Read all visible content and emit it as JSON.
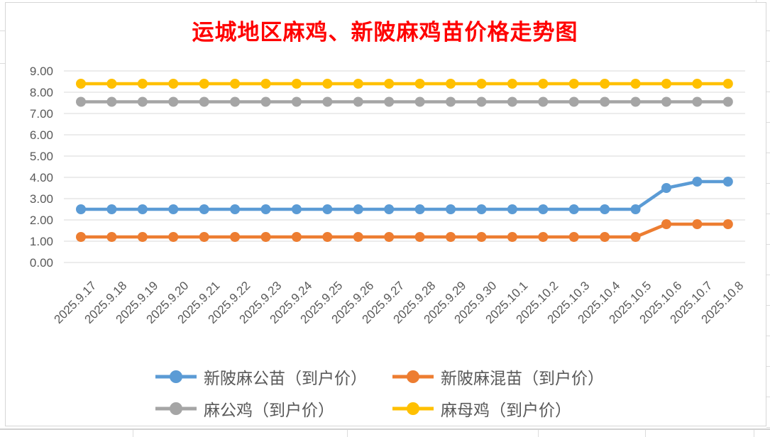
{
  "title": "运城地区麻鸡、新陂麻鸡苗价格走势图",
  "colors": {
    "title": "#FF0000",
    "axis_text": "#595959",
    "gridline": "#D9D9D9",
    "chart_border": "#D6D6D6",
    "sheet_line": "#D2D2D2"
  },
  "chart_data": {
    "type": "line",
    "title": "运城地区麻鸡、新陂麻鸡苗价格走势图",
    "xlabel": "",
    "ylabel": "",
    "ylim": [
      0,
      9
    ],
    "grid": true,
    "legend_position": "bottom",
    "marker": "circle",
    "yticks": [
      "0.00",
      "1.00",
      "2.00",
      "3.00",
      "4.00",
      "5.00",
      "6.00",
      "7.00",
      "8.00",
      "9.00"
    ],
    "categories": [
      "2025.9.17",
      "2025.9.18",
      "2025.9.19",
      "2025.9.20",
      "2025.9.21",
      "2025.9.22",
      "2025.9.23",
      "2025.9.24",
      "2025.9.25",
      "2025.9.26",
      "2025.9.27",
      "2025.9.28",
      "2025.9.29",
      "2025.9.30",
      "2025.10.1",
      "2025.10.2",
      "2025.10.3",
      "2025.10.4",
      "2025.10.5",
      "2025.10.6",
      "2025.10.7",
      "2025.10.8"
    ],
    "series": [
      {
        "name": "新陂麻公苗（到户价）",
        "color": "#5B9BD5",
        "values": [
          2.5,
          2.5,
          2.5,
          2.5,
          2.5,
          2.5,
          2.5,
          2.5,
          2.5,
          2.5,
          2.5,
          2.5,
          2.5,
          2.5,
          2.5,
          2.5,
          2.5,
          2.5,
          2.5,
          3.5,
          3.8,
          3.8
        ]
      },
      {
        "name": "新陂麻混苗（到户价）",
        "color": "#ED7D31",
        "values": [
          1.2,
          1.2,
          1.2,
          1.2,
          1.2,
          1.2,
          1.2,
          1.2,
          1.2,
          1.2,
          1.2,
          1.2,
          1.2,
          1.2,
          1.2,
          1.2,
          1.2,
          1.2,
          1.2,
          1.8,
          1.8,
          1.8
        ]
      },
      {
        "name": "麻公鸡（到户价）",
        "color": "#A5A5A5",
        "values": [
          7.55,
          7.55,
          7.55,
          7.55,
          7.55,
          7.55,
          7.55,
          7.55,
          7.55,
          7.55,
          7.55,
          7.55,
          7.55,
          7.55,
          7.55,
          7.55,
          7.55,
          7.55,
          7.55,
          7.55,
          7.55,
          7.55
        ]
      },
      {
        "name": "麻母鸡（到户价）",
        "color": "#FFC000",
        "values": [
          8.4,
          8.4,
          8.4,
          8.4,
          8.4,
          8.4,
          8.4,
          8.4,
          8.4,
          8.4,
          8.4,
          8.4,
          8.4,
          8.4,
          8.4,
          8.4,
          8.4,
          8.4,
          8.4,
          8.4,
          8.4,
          8.4
        ]
      }
    ]
  }
}
